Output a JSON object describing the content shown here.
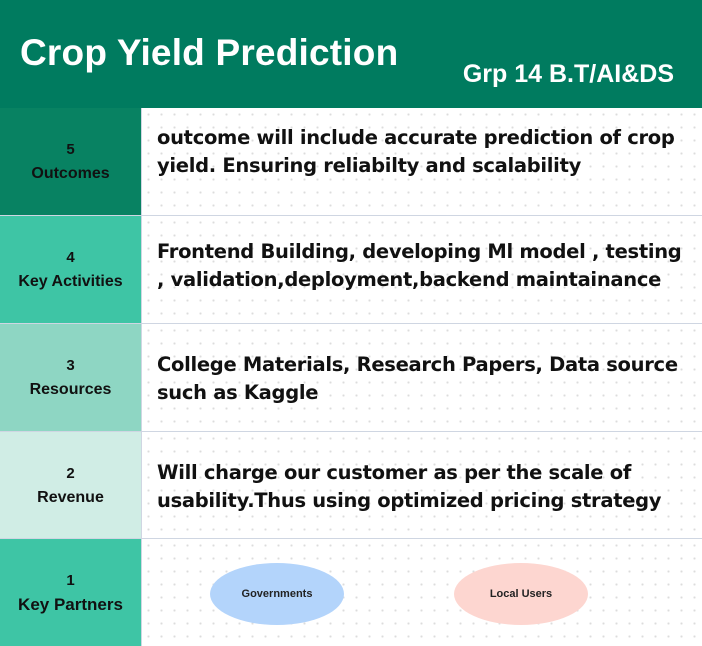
{
  "header": {
    "title": "Crop Yield Prediction",
    "group": "Grp 14 B.T/AI&DS"
  },
  "rows": [
    {
      "number": "5",
      "name": "Outcomes",
      "color": "#088262",
      "text": "outcome will include accurate prediction of crop yield. Ensuring reliabilty and scalability"
    },
    {
      "number": "4",
      "name": "Key Activities",
      "color": "#3ec5a5",
      "text": "Frontend  Building, developing Ml model , testing , validation,deployment,backend maintainance"
    },
    {
      "number": "3",
      "name": "Resources",
      "color": "#8ed6c3",
      "text": "College Materials, Research Papers, Data source such as Kaggle"
    },
    {
      "number": "2",
      "name": "Revenue",
      "color": "#d0ede5",
      "text": "Will charge our customer as per the scale of usability.Thus using optimized pricing strategy"
    },
    {
      "number": "1",
      "name": "Key Partners",
      "color": "#3ec5a5",
      "partners": [
        {
          "label": "Governments",
          "color": "#b3d4fb"
        },
        {
          "label": "Local Users",
          "color": "#fdd6d0"
        }
      ]
    }
  ]
}
